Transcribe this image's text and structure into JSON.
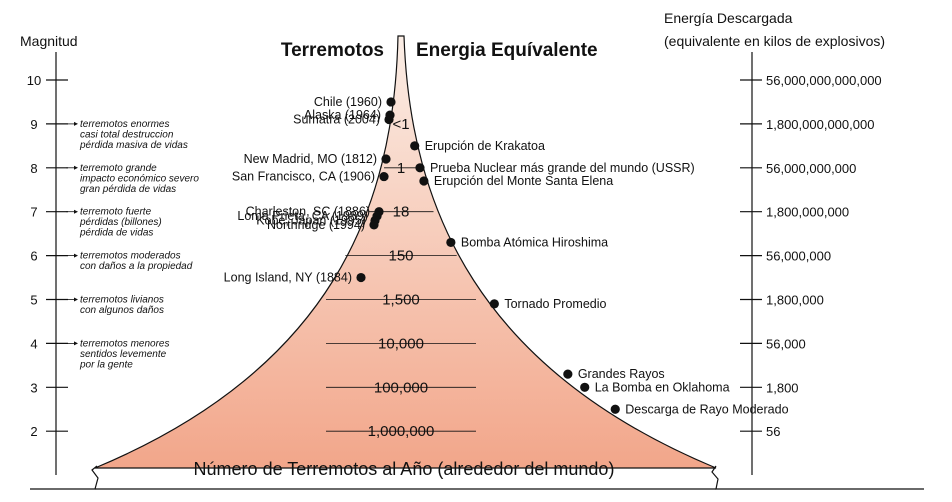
{
  "titles": {
    "left": "Terremotos",
    "right": "Energia Equívalente"
  },
  "left_axis": {
    "label": "Magnitud",
    "ticks": [
      "10",
      "9",
      "8",
      "7",
      "6",
      "5",
      "4",
      "3",
      "2"
    ]
  },
  "right_axis": {
    "label_line1": "Energía Descargada",
    "label_line2": "(equivalente en kilos de explosivos)",
    "ticks": [
      "56,000,000,000,000",
      "1,800,000,000,000",
      "56,000,000,000",
      "1,800,000,000",
      "56,000,000",
      "1,800,000",
      "56,000",
      "1,800",
      "56"
    ]
  },
  "magnitude_descriptions": [
    {
      "magnitude": 9,
      "lines": [
        "terremotos enormes",
        "casi total destruccion",
        "pérdida masiva de vidas"
      ]
    },
    {
      "magnitude": 8,
      "lines": [
        "terremoto grande",
        "impacto económico severo",
        "gran pérdida de vidas"
      ]
    },
    {
      "magnitude": 7,
      "lines": [
        "terremoto fuerte",
        "pérdidas (billones)",
        "pérdida de vidas"
      ]
    },
    {
      "magnitude": 6,
      "lines": [
        "terremotos moderados",
        "con daños a la propiedad"
      ]
    },
    {
      "magnitude": 5,
      "lines": [
        "terremotos livianos",
        "con algunos daños"
      ]
    },
    {
      "magnitude": 4,
      "lines": [
        "terremotos menores",
        "sentidos levemente",
        "por la gente"
      ]
    }
  ],
  "earthquakes": [
    {
      "label": "Chile (1960)",
      "magnitude": 9.5
    },
    {
      "label": "Alaska (1964)",
      "magnitude": 9.2
    },
    {
      "label": "Sumatra (2004)",
      "magnitude": 9.1
    },
    {
      "label": "New Madrid, MO (1812)",
      "magnitude": 8.2
    },
    {
      "label": "San Francisco, CA (1906)",
      "magnitude": 7.8
    },
    {
      "label": "Charleston, SC (1886)",
      "magnitude": 7.0
    },
    {
      "label": "Loma Prieta, CA (1989)",
      "magnitude": 6.9
    },
    {
      "label": "Kobe, Japan (1995)",
      "magnitude": 6.8
    },
    {
      "label": "Northridge (1994)",
      "magnitude": 6.7
    },
    {
      "label": "Long Island, NY (1884)",
      "magnitude": 5.5
    }
  ],
  "energy_equivalents": [
    {
      "label": "Erupción de Krakatoa",
      "magnitude": 8.5
    },
    {
      "label": "Prueba Nuclear más grande del mundo (USSR)",
      "magnitude": 8.0
    },
    {
      "label": "Erupción del Monte Santa Elena",
      "magnitude": 7.7
    },
    {
      "label": "Bomba Atómica Hiroshima",
      "magnitude": 6.3
    },
    {
      "label": "Tornado Promedio",
      "magnitude": 4.9
    },
    {
      "label": "Grandes Rayos",
      "magnitude": 3.3
    },
    {
      "label": "La Bomba en Oklahoma",
      "magnitude": 3.0
    },
    {
      "label": "Descarga de Rayo Moderado",
      "magnitude": 2.5
    }
  ],
  "annual_counts": [
    {
      "label": "<1",
      "magnitude": 9.0
    },
    {
      "label": "1",
      "magnitude": 8.0
    },
    {
      "label": "18",
      "magnitude": 7.0
    },
    {
      "label": "150",
      "magnitude": 6.0
    },
    {
      "label": "1,500",
      "magnitude": 5.0
    },
    {
      "label": "10,000",
      "magnitude": 4.0
    },
    {
      "label": "100,000",
      "magnitude": 3.0
    },
    {
      "label": "1,000,000",
      "magnitude": 2.0
    }
  ],
  "bottom_label": "Número de Terremotos al Año  (alrededor del mundo)",
  "colors": {
    "funnel_top": "#fbeee6",
    "funnel_bottom": "#f2a68a",
    "ink": "#111111"
  }
}
